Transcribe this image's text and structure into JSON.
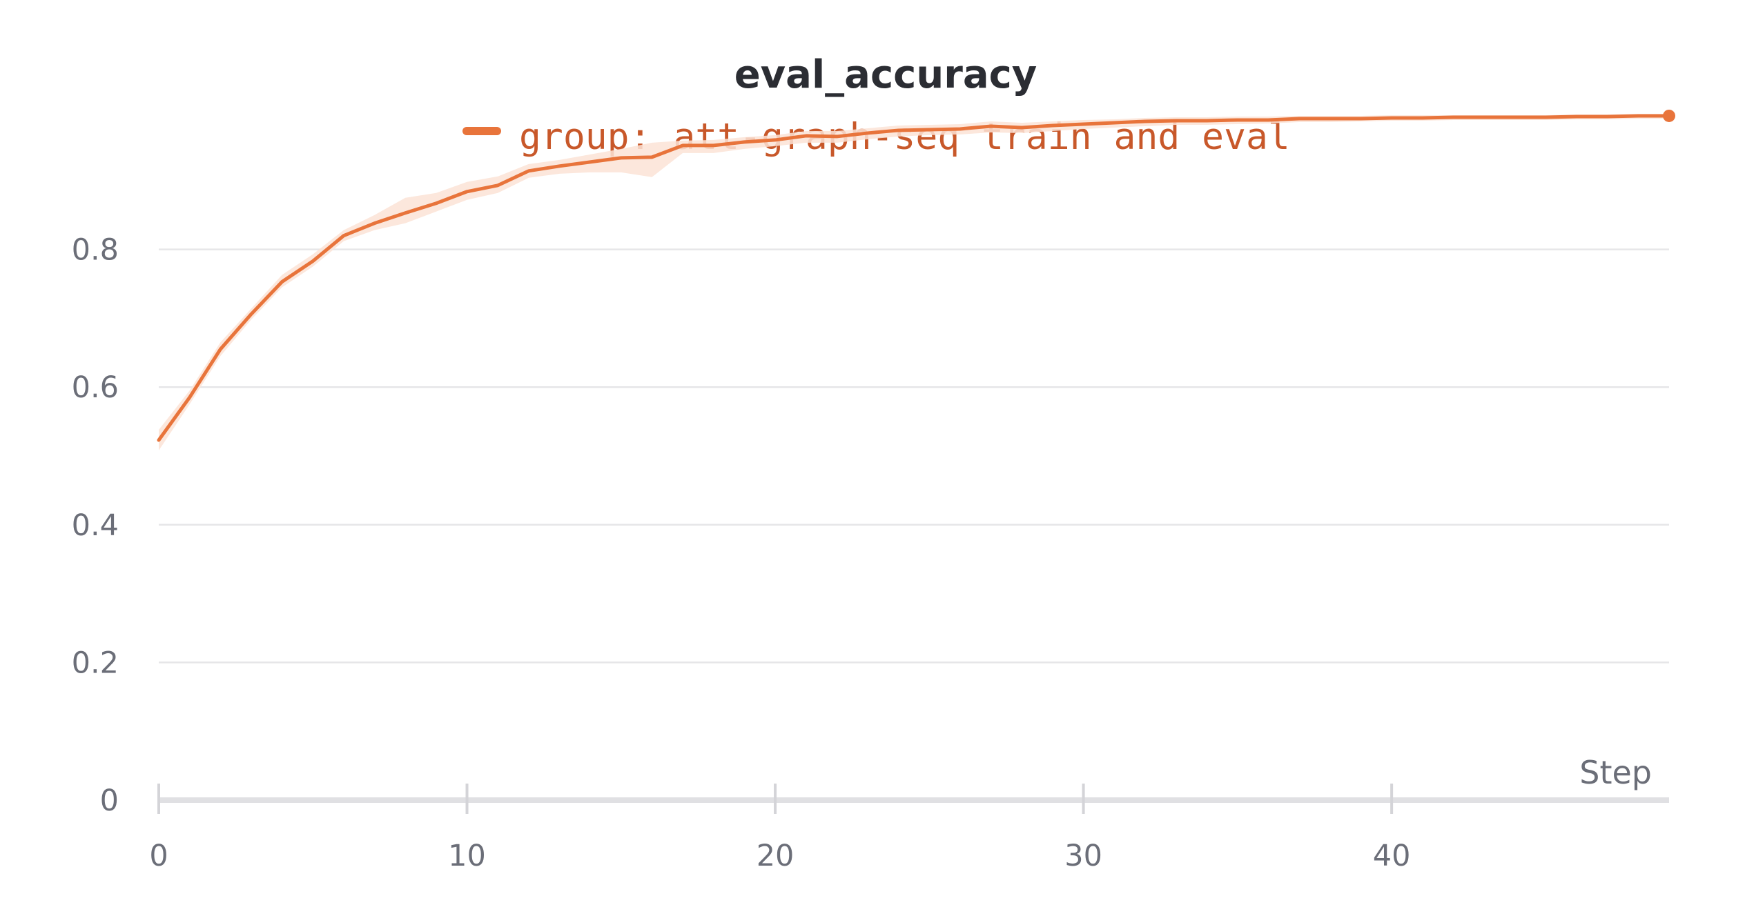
{
  "chart_data": {
    "type": "line",
    "title": "eval_accuracy",
    "xlabel": "Step",
    "ylabel": "",
    "xlim": [
      0,
      49
    ],
    "ylim": [
      0,
      1.0
    ],
    "x_ticks": [
      {
        "value": 0,
        "label": "0"
      },
      {
        "value": 10,
        "label": "10"
      },
      {
        "value": 20,
        "label": "20"
      },
      {
        "value": 30,
        "label": "30"
      },
      {
        "value": 40,
        "label": "40"
      }
    ],
    "y_ticks": [
      {
        "value": 0,
        "label": "0"
      },
      {
        "value": 0.2,
        "label": "0.2"
      },
      {
        "value": 0.4,
        "label": "0.4"
      },
      {
        "value": 0.6,
        "label": "0.6"
      },
      {
        "value": 0.8,
        "label": "0.8"
      }
    ],
    "grid": true,
    "legend_position": "top-center",
    "colors": {
      "series": "#e8743b",
      "band": "#fbe3d6"
    },
    "series": [
      {
        "name": "group: att-graph-seq train and eval",
        "x": [
          0,
          1,
          2,
          3,
          4,
          5,
          6,
          7,
          8,
          9,
          10,
          11,
          12,
          13,
          14,
          15,
          16,
          17,
          18,
          19,
          20,
          21,
          22,
          23,
          24,
          25,
          26,
          27,
          28,
          29,
          30,
          31,
          32,
          33,
          34,
          35,
          36,
          37,
          38,
          39,
          40,
          41,
          42,
          43,
          44,
          45,
          46,
          47,
          48,
          49
        ],
        "values": [
          0.523,
          0.585,
          0.655,
          0.706,
          0.753,
          0.783,
          0.82,
          0.838,
          0.853,
          0.867,
          0.884,
          0.893,
          0.914,
          0.921,
          0.927,
          0.933,
          0.934,
          0.951,
          0.951,
          0.956,
          0.959,
          0.965,
          0.964,
          0.969,
          0.973,
          0.974,
          0.975,
          0.979,
          0.977,
          0.98,
          0.982,
          0.984,
          0.986,
          0.987,
          0.987,
          0.988,
          0.988,
          0.99,
          0.99,
          0.99,
          0.991,
          0.991,
          0.992,
          0.992,
          0.992,
          0.992,
          0.993,
          0.993,
          0.994,
          0.994
        ],
        "lower": [
          0.508,
          0.575,
          0.645,
          0.698,
          0.745,
          0.775,
          0.812,
          0.828,
          0.838,
          0.855,
          0.872,
          0.882,
          0.904,
          0.91,
          0.912,
          0.912,
          0.905,
          0.94,
          0.94,
          0.946,
          0.95,
          0.955,
          0.955,
          0.96,
          0.964,
          0.966,
          0.967,
          0.97,
          0.969,
          0.972,
          0.975,
          0.977,
          0.979,
          0.981,
          0.981,
          0.982,
          0.983,
          0.985,
          0.985,
          0.986,
          0.987,
          0.987,
          0.988,
          0.988,
          0.988,
          0.988,
          0.989,
          0.989,
          0.99,
          0.99
        ],
        "upper": [
          0.538,
          0.595,
          0.665,
          0.714,
          0.763,
          0.793,
          0.828,
          0.85,
          0.875,
          0.882,
          0.898,
          0.906,
          0.924,
          0.93,
          0.938,
          0.946,
          0.955,
          0.958,
          0.959,
          0.963,
          0.966,
          0.972,
          0.972,
          0.976,
          0.98,
          0.981,
          0.982,
          0.986,
          0.984,
          0.986,
          0.988,
          0.989,
          0.991,
          0.992,
          0.992,
          0.993,
          0.993,
          0.994,
          0.994,
          0.994,
          0.995,
          0.995,
          0.995,
          0.995,
          0.995,
          0.995,
          0.996,
          0.996,
          0.997,
          0.997
        ]
      }
    ]
  }
}
